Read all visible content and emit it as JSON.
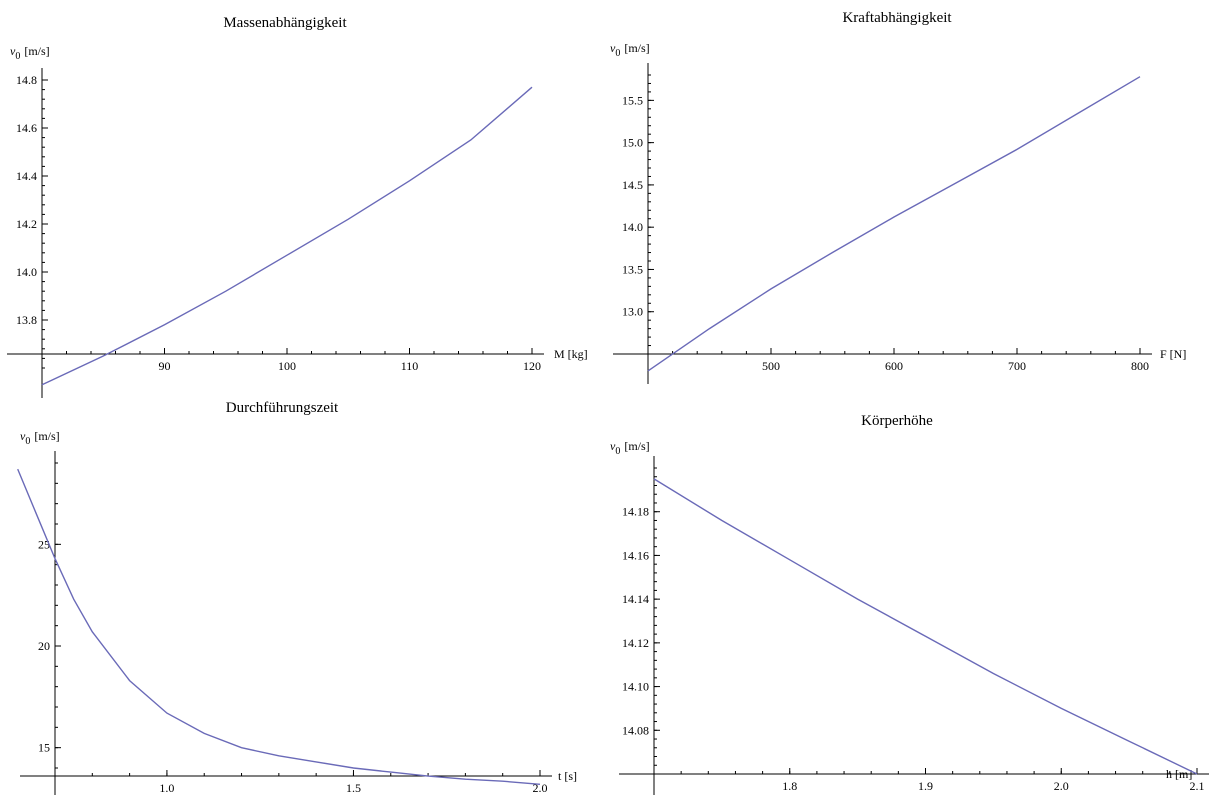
{
  "chart_data": [
    {
      "type": "line",
      "title": "Massenabhängigkeit",
      "xlabel": "M [kg]",
      "ylabel_var": "v",
      "ylabel_sub": "0",
      "ylabel_unit": "[m/s]",
      "xlim": [
        80,
        120
      ],
      "ylim": [
        13.6,
        14.8
      ],
      "x_cross": 13.6,
      "xticks": [
        90,
        100,
        110,
        120
      ],
      "xtick_labels": [
        "90",
        "100",
        "110",
        "120"
      ],
      "yticks": [
        13.8,
        14.0,
        14.2,
        14.4,
        14.6,
        14.8
      ],
      "ytick_labels": [
        "13.8",
        "14.0",
        "14.2",
        "14.4",
        "14.6",
        "14.8"
      ],
      "series": [
        {
          "x": [
            80,
            85,
            90,
            95,
            100,
            105,
            110,
            115,
            120
          ],
          "y": [
            13.53,
            13.65,
            13.78,
            13.92,
            14.07,
            14.22,
            14.38,
            14.55,
            14.77
          ]
        }
      ]
    },
    {
      "type": "line",
      "title": "Kraftabhängigkeit",
      "xlabel": "F [N]",
      "ylabel_var": "v",
      "ylabel_sub": "0",
      "ylabel_unit": "[m/s]",
      "xlim": [
        400,
        800
      ],
      "ylim": [
        12.5,
        15.8
      ],
      "x_cross": 12.5,
      "xticks": [
        500,
        600,
        700,
        800
      ],
      "xtick_labels": [
        "500",
        "600",
        "700",
        "800"
      ],
      "yticks": [
        13.0,
        13.5,
        14.0,
        14.5,
        15.0,
        15.5
      ],
      "ytick_labels": [
        "13.0",
        "13.5",
        "14.0",
        "14.5",
        "15.0",
        "15.5"
      ],
      "series": [
        {
          "x": [
            400,
            450,
            500,
            550,
            600,
            650,
            700,
            750,
            800
          ],
          "y": [
            12.3,
            12.8,
            13.27,
            13.7,
            14.12,
            14.52,
            14.92,
            15.35,
            15.78
          ]
        }
      ]
    },
    {
      "type": "line",
      "title": "Durchführungszeit",
      "xlabel": "t [s]",
      "ylabel_var": "v",
      "ylabel_sub": "0",
      "ylabel_unit": "[m/s]",
      "xlim": [
        0.7,
        2.0
      ],
      "ylim": [
        14.0,
        29.0
      ],
      "x_cross": 14.0,
      "xticks": [
        1.0,
        1.5,
        2.0
      ],
      "xtick_labels": [
        "1.0",
        "1.5",
        "2.0"
      ],
      "yticks": [
        15,
        20,
        25
      ],
      "ytick_labels": [
        "15",
        "20",
        "25"
      ],
      "series": [
        {
          "x": [
            0.6,
            0.65,
            0.7,
            0.75,
            0.8,
            0.9,
            1.0,
            1.1,
            1.2,
            1.3,
            1.4,
            1.5,
            1.6,
            1.7,
            1.8,
            1.9,
            2.0
          ],
          "y": [
            28.7,
            26.5,
            24.3,
            22.3,
            20.7,
            18.3,
            16.7,
            15.7,
            15.0,
            14.6,
            14.3,
            14.0,
            13.8,
            13.6,
            13.45,
            13.35,
            13.2
          ]
        }
      ]
    },
    {
      "type": "line",
      "title": "Körperhöhe",
      "xlabel": "h [m]",
      "ylabel_var": "v",
      "ylabel_sub": "0",
      "ylabel_unit": "[m/s]",
      "xlim": [
        1.7,
        2.1
      ],
      "ylim": [
        14.06,
        14.2
      ],
      "x_cross": 14.06,
      "xticks": [
        1.8,
        1.9,
        2.0,
        2.1
      ],
      "xtick_labels": [
        "1.8",
        "1.9",
        "2.0",
        "2.1"
      ],
      "yticks": [
        14.08,
        14.1,
        14.12,
        14.14,
        14.16,
        14.18
      ],
      "ytick_labels": [
        "14.08",
        "14.10",
        "14.12",
        "14.14",
        "14.16",
        "14.18"
      ],
      "series": [
        {
          "x": [
            1.7,
            1.75,
            1.8,
            1.85,
            1.9,
            1.95,
            2.0,
            2.05,
            2.1
          ],
          "y": [
            14.195,
            14.176,
            14.158,
            14.14,
            14.123,
            14.106,
            14.09,
            14.075,
            14.06
          ]
        }
      ]
    }
  ]
}
